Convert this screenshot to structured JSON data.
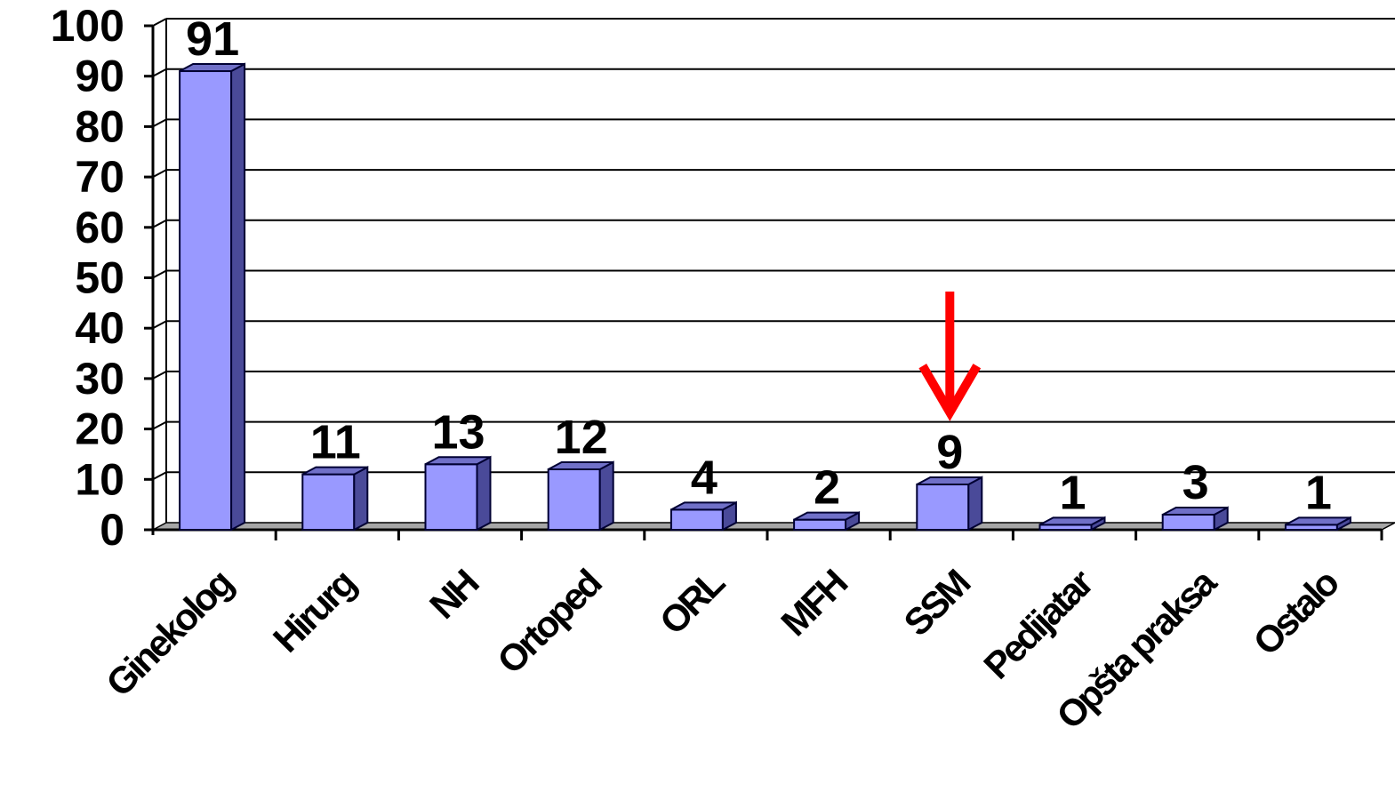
{
  "chart_data": {
    "type": "bar",
    "categories": [
      "Ginekolog",
      "Hirurg",
      "NH",
      "Ortoped",
      "ORL",
      "MFH",
      "SSM",
      "Pedijatar",
      "Opšta praksa",
      "Ostalo"
    ],
    "values": [
      91,
      11,
      13,
      12,
      4,
      2,
      9,
      1,
      3,
      1
    ],
    "data_labels": [
      "91",
      "11",
      "13",
      "12",
      "4",
      "2",
      "9",
      "1",
      "3",
      "1"
    ],
    "y_ticks": [
      "0",
      "10",
      "20",
      "30",
      "40",
      "50",
      "60",
      "70",
      "80",
      "90",
      "100"
    ],
    "ylim": [
      0,
      100
    ],
    "grid": true,
    "legend": "none",
    "title": "",
    "xlabel": "",
    "ylabel": "",
    "highlight_category": "SSM",
    "colors": {
      "bar_front": "#9999ff",
      "bar_side": "#4a4a99",
      "bar_top": "#7070c8",
      "bar_stroke": "#000033",
      "grid": "#000000",
      "floor": "#a6a6a6",
      "arrow": "#ff0000"
    }
  }
}
